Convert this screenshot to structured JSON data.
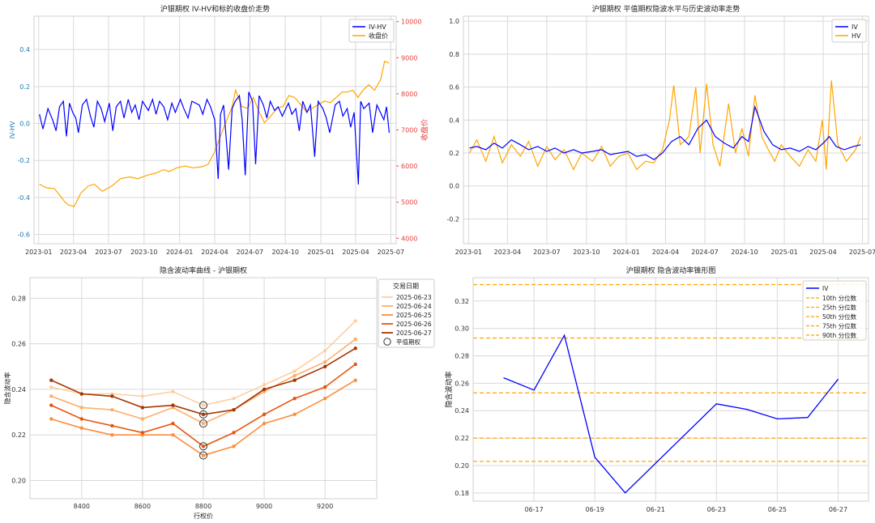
{
  "chart_data": [
    {
      "type": "line",
      "title": "沪银期权 IV-HV和标的收盘价走势",
      "xlabel": "",
      "ylabel": "IV-HV",
      "y2label": "收盘价",
      "xticks": [
        "2023-01",
        "2023-04",
        "2023-07",
        "2023-10",
        "2024-01",
        "2024-04",
        "2024-07",
        "2024-10",
        "2025-01",
        "2025-04",
        "2025-07"
      ],
      "x_range": [
        "2022-12-20",
        "2025-07-15"
      ],
      "yticks": [
        -0.6,
        -0.4,
        -0.2,
        0.0,
        0.2,
        0.4
      ],
      "ylim": [
        -0.65,
        0.58
      ],
      "y2ticks": [
        4000,
        5000,
        6000,
        7000,
        8000,
        9000,
        10000
      ],
      "y2lim": [
        3850,
        10150
      ],
      "grid": true,
      "legend_position": "top-right",
      "colors": {
        "iv_hv": "#0000ff",
        "close": "#ffa500",
        "left_axis": "#1f77b4",
        "right_axis": "#e8403b"
      },
      "series": [
        {
          "name": "IV-HV",
          "axis": "left",
          "color": "#0000ff",
          "x": [
            "2023-01-03",
            "2023-01-12",
            "2023-01-25",
            "2023-02-06",
            "2023-02-15",
            "2023-02-24",
            "2023-03-06",
            "2023-03-14",
            "2023-03-22",
            "2023-03-30",
            "2023-04-07",
            "2023-04-14",
            "2023-04-24",
            "2023-05-05",
            "2023-05-15",
            "2023-05-24",
            "2023-06-02",
            "2023-06-12",
            "2023-06-21",
            "2023-07-03",
            "2023-07-12",
            "2023-07-21",
            "2023-08-01",
            "2023-08-10",
            "2023-08-21",
            "2023-08-30",
            "2023-09-08",
            "2023-09-18",
            "2023-09-27",
            "2023-10-12",
            "2023-10-23",
            "2023-11-01",
            "2023-11-10",
            "2023-11-21",
            "2023-12-01",
            "2023-12-12",
            "2023-12-21",
            "2024-01-03",
            "2024-01-12",
            "2024-01-23",
            "2024-02-02",
            "2024-02-21",
            "2024-03-01",
            "2024-03-12",
            "2024-03-21",
            "2024-04-01",
            "2024-04-10",
            "2024-04-16",
            "2024-04-24",
            "2024-05-07",
            "2024-05-16",
            "2024-05-24",
            "2024-06-04",
            "2024-06-11",
            "2024-06-19",
            "2024-06-28",
            "2024-07-08",
            "2024-07-16",
            "2024-07-25",
            "2024-08-05",
            "2024-08-14",
            "2024-08-23",
            "2024-09-03",
            "2024-09-12",
            "2024-09-23",
            "2024-10-09",
            "2024-10-18",
            "2024-10-28",
            "2024-11-06",
            "2024-11-15",
            "2024-11-26",
            "2024-12-05",
            "2024-12-16",
            "2024-12-25",
            "2025-01-06",
            "2025-01-15",
            "2025-01-24",
            "2025-02-07",
            "2025-02-18",
            "2025-02-27",
            "2025-03-10",
            "2025-03-19",
            "2025-03-28",
            "2025-04-08",
            "2025-04-14",
            "2025-04-22",
            "2025-05-06",
            "2025-05-15",
            "2025-05-26",
            "2025-06-04",
            "2025-06-13",
            "2025-06-20",
            "2025-06-27"
          ],
          "y": [
            0.05,
            -0.03,
            0.08,
            0.02,
            -0.04,
            0.09,
            0.12,
            -0.07,
            0.11,
            0.06,
            0.03,
            -0.05,
            0.1,
            0.13,
            0.04,
            -0.02,
            0.12,
            0.08,
            0.01,
            0.11,
            -0.04,
            0.09,
            0.12,
            0.03,
            0.13,
            0.06,
            0.1,
            0.02,
            0.12,
            0.07,
            0.13,
            0.05,
            0.12,
            0.09,
            0.02,
            0.11,
            0.06,
            0.13,
            0.08,
            0.03,
            0.12,
            0.1,
            0.05,
            0.13,
            0.09,
            0.02,
            -0.3,
            0.05,
            0.1,
            -0.25,
            0.08,
            0.12,
            0.15,
            0.02,
            -0.28,
            0.17,
            0.12,
            -0.22,
            0.15,
            0.1,
            0.03,
            0.12,
            0.07,
            0.09,
            0.04,
            0.11,
            0.05,
            0.08,
            -0.04,
            0.12,
            0.06,
            0.1,
            -0.18,
            0.12,
            0.08,
            0.03,
            -0.05,
            0.1,
            0.12,
            0.04,
            0.08,
            -0.02,
            0.06,
            -0.33,
            0.12,
            0.08,
            0.11,
            -0.05,
            0.1,
            0.06,
            0.02,
            0.09,
            -0.05
          ]
        },
        {
          "name": "收盘价",
          "axis": "right",
          "color": "#ffa500",
          "x": [
            "2023-01-03",
            "2023-01-20",
            "2023-02-10",
            "2023-02-28",
            "2023-03-10",
            "2023-03-20",
            "2023-04-03",
            "2023-04-20",
            "2023-05-10",
            "2023-05-25",
            "2023-06-15",
            "2023-07-10",
            "2023-08-01",
            "2023-08-25",
            "2023-09-15",
            "2023-10-10",
            "2023-10-30",
            "2023-11-20",
            "2023-12-05",
            "2023-12-25",
            "2024-01-15",
            "2024-02-05",
            "2024-02-28",
            "2024-03-15",
            "2024-04-01",
            "2024-04-15",
            "2024-05-01",
            "2024-05-15",
            "2024-05-25",
            "2024-06-10",
            "2024-06-25",
            "2024-07-10",
            "2024-07-25",
            "2024-08-08",
            "2024-08-25",
            "2024-09-10",
            "2024-09-25",
            "2024-10-10",
            "2024-10-25",
            "2024-11-10",
            "2024-11-25",
            "2024-12-10",
            "2024-12-25",
            "2025-01-10",
            "2025-01-25",
            "2025-02-10",
            "2025-02-25",
            "2025-03-10",
            "2025-03-25",
            "2025-04-07",
            "2025-04-20",
            "2025-05-05",
            "2025-05-20",
            "2025-06-05",
            "2025-06-15",
            "2025-06-27"
          ],
          "y": [
            5500,
            5400,
            5380,
            5150,
            5000,
            4920,
            4880,
            5250,
            5450,
            5500,
            5300,
            5450,
            5650,
            5700,
            5650,
            5750,
            5800,
            5900,
            5850,
            5950,
            6000,
            5950,
            5980,
            6050,
            6400,
            6800,
            7250,
            7600,
            8100,
            7650,
            7600,
            7900,
            7500,
            7200,
            7400,
            7600,
            7650,
            7950,
            7900,
            7700,
            7500,
            7600,
            7700,
            7800,
            7750,
            7900,
            8050,
            8050,
            8100,
            7900,
            8100,
            8250,
            8100,
            8400,
            8900,
            8850
          ]
        }
      ]
    },
    {
      "type": "line",
      "title": "沪银期权 平值期权隐波水平与历史波动率走势",
      "xlabel": "",
      "ylabel": "",
      "xticks": [
        "2023-01",
        "2023-04",
        "2023-07",
        "2023-10",
        "2024-01",
        "2024-04",
        "2024-07",
        "2024-10",
        "2025-01",
        "2025-04",
        "2025-07"
      ],
      "x_range": [
        "2022-12-20",
        "2025-07-15"
      ],
      "yticks": [
        -0.2,
        0.0,
        0.2,
        0.4,
        0.6,
        0.8,
        1.0
      ],
      "ylim": [
        -0.35,
        1.03
      ],
      "grid": true,
      "legend_position": "top-right",
      "series": [
        {
          "name": "IV",
          "color": "#0000ff",
          "x": [
            "2023-01-03",
            "2023-01-20",
            "2023-02-10",
            "2023-03-01",
            "2023-03-20",
            "2023-04-10",
            "2023-05-01",
            "2023-05-20",
            "2023-06-10",
            "2023-07-01",
            "2023-07-20",
            "2023-08-10",
            "2023-09-01",
            "2023-09-20",
            "2023-10-15",
            "2023-11-05",
            "2023-11-25",
            "2023-12-15",
            "2024-01-05",
            "2024-01-25",
            "2024-02-15",
            "2024-03-05",
            "2024-03-25",
            "2024-04-15",
            "2024-05-05",
            "2024-05-25",
            "2024-06-15",
            "2024-07-05",
            "2024-07-25",
            "2024-08-15",
            "2024-09-05",
            "2024-09-25",
            "2024-10-10",
            "2024-10-25",
            "2024-11-15",
            "2024-12-05",
            "2024-12-25",
            "2025-01-15",
            "2025-02-05",
            "2025-02-25",
            "2025-03-15",
            "2025-04-05",
            "2025-04-15",
            "2025-05-01",
            "2025-05-20",
            "2025-06-10",
            "2025-06-27"
          ],
          "y": [
            0.23,
            0.24,
            0.22,
            0.26,
            0.23,
            0.28,
            0.25,
            0.22,
            0.24,
            0.21,
            0.23,
            0.2,
            0.22,
            0.2,
            0.21,
            0.22,
            0.19,
            0.2,
            0.21,
            0.18,
            0.19,
            0.16,
            0.2,
            0.27,
            0.3,
            0.25,
            0.35,
            0.4,
            0.3,
            0.26,
            0.23,
            0.3,
            0.27,
            0.48,
            0.33,
            0.25,
            0.22,
            0.23,
            0.21,
            0.24,
            0.22,
            0.27,
            0.3,
            0.24,
            0.22,
            0.24,
            0.25
          ]
        },
        {
          "name": "HV",
          "color": "#ffa500",
          "x": [
            "2023-01-03",
            "2023-01-20",
            "2023-02-10",
            "2023-03-01",
            "2023-03-20",
            "2023-04-10",
            "2023-05-01",
            "2023-05-20",
            "2023-06-10",
            "2023-07-01",
            "2023-07-20",
            "2023-08-10",
            "2023-09-01",
            "2023-09-20",
            "2023-10-15",
            "2023-11-05",
            "2023-11-25",
            "2023-12-15",
            "2024-01-05",
            "2024-01-25",
            "2024-02-15",
            "2024-03-05",
            "2024-03-25",
            "2024-04-10",
            "2024-04-20",
            "2024-05-05",
            "2024-05-25",
            "2024-06-10",
            "2024-06-20",
            "2024-07-05",
            "2024-07-20",
            "2024-08-05",
            "2024-08-25",
            "2024-09-10",
            "2024-09-25",
            "2024-10-10",
            "2024-10-25",
            "2024-11-10",
            "2024-11-25",
            "2024-12-10",
            "2024-12-25",
            "2025-01-15",
            "2025-02-05",
            "2025-02-25",
            "2025-03-15",
            "2025-03-30",
            "2025-04-08",
            "2025-04-20",
            "2025-05-05",
            "2025-05-25",
            "2025-06-15",
            "2025-06-27"
          ],
          "y": [
            0.2,
            0.28,
            0.15,
            0.3,
            0.14,
            0.25,
            0.18,
            0.27,
            0.12,
            0.24,
            0.16,
            0.22,
            0.1,
            0.2,
            0.15,
            0.24,
            0.12,
            0.18,
            0.2,
            0.1,
            0.15,
            0.14,
            0.22,
            0.4,
            0.61,
            0.25,
            0.3,
            0.6,
            0.2,
            0.62,
            0.25,
            0.12,
            0.5,
            0.2,
            0.35,
            0.18,
            0.55,
            0.3,
            0.22,
            0.15,
            0.25,
            0.18,
            0.12,
            0.22,
            0.15,
            0.4,
            0.1,
            0.64,
            0.25,
            0.15,
            0.22,
            0.3
          ]
        }
      ]
    },
    {
      "type": "line",
      "title": "隐含波动率曲线 - 沪银期权",
      "xlabel": "行权价",
      "ylabel": "隐含波动率",
      "xticks": [
        8400,
        8600,
        8800,
        9000,
        9200
      ],
      "xlim": [
        8230,
        9370
      ],
      "yticks": [
        0.2,
        0.22,
        0.24,
        0.26,
        0.28
      ],
      "ylim": [
        0.192,
        0.289
      ],
      "grid": true,
      "legend_title": "交易日期",
      "legend_position": "top-right",
      "x": [
        8300,
        8400,
        8500,
        8600,
        8700,
        8800,
        8900,
        9000,
        9100,
        9200,
        9300
      ],
      "series": [
        {
          "name": "2025-06-23",
          "color": "#fdd0a2",
          "values": [
            0.241,
            0.238,
            0.238,
            0.237,
            0.239,
            0.233,
            0.236,
            0.242,
            0.248,
            0.257,
            0.27
          ]
        },
        {
          "name": "2025-06-24",
          "color": "#fdae6b",
          "values": [
            0.237,
            0.232,
            0.231,
            0.227,
            0.232,
            0.225,
            0.231,
            0.239,
            0.246,
            0.252,
            0.262
          ]
        },
        {
          "name": "2025-06-25",
          "color": "#fd8d3c",
          "values": [
            0.227,
            0.223,
            0.22,
            0.22,
            0.22,
            0.211,
            0.215,
            0.225,
            0.229,
            0.236,
            0.244
          ]
        },
        {
          "name": "2025-06-26",
          "color": "#e6550d",
          "values": [
            0.233,
            0.227,
            0.224,
            0.221,
            0.225,
            0.215,
            0.221,
            0.229,
            0.236,
            0.241,
            0.251
          ]
        },
        {
          "name": "2025-06-27",
          "color": "#a63603",
          "values": [
            0.244,
            0.238,
            0.237,
            0.232,
            0.233,
            0.229,
            0.231,
            0.24,
            0.244,
            0.25,
            0.258
          ]
        }
      ],
      "atm_label": "平值期权",
      "atm_strike": 8800
    },
    {
      "type": "line",
      "title": "沪银期权 隐含波动率锥形图",
      "xlabel": "",
      "ylabel": "隐含波动率",
      "xticks": [
        "06-17",
        "06-19",
        "06-21",
        "06-23",
        "06-25",
        "06-27"
      ],
      "x_range": [
        "2025-06-15",
        "2025-06-28"
      ],
      "yticks": [
        0.18,
        0.2,
        0.22,
        0.24,
        0.26,
        0.28,
        0.3,
        0.32
      ],
      "ylim": [
        0.174,
        0.337
      ],
      "grid": true,
      "legend_position": "top-right",
      "series": [
        {
          "name": "IV",
          "color": "#0000ff",
          "x": [
            "2025-06-16",
            "2025-06-17",
            "2025-06-18",
            "2025-06-19",
            "2025-06-20",
            "2025-06-23",
            "2025-06-24",
            "2025-06-25",
            "2025-06-26",
            "2025-06-27"
          ],
          "values": [
            0.264,
            0.255,
            0.295,
            0.206,
            0.18,
            0.245,
            0.241,
            0.234,
            0.235,
            0.263
          ]
        }
      ],
      "percentiles": [
        {
          "name": "10th 分位数",
          "value": 0.203
        },
        {
          "name": "25th 分位数",
          "value": 0.22
        },
        {
          "name": "50th 分位数",
          "value": 0.253
        },
        {
          "name": "75th 分位数",
          "value": 0.293
        },
        {
          "name": "90th 分位数",
          "value": 0.332
        }
      ],
      "percentile_color": "#ffa500"
    }
  ]
}
